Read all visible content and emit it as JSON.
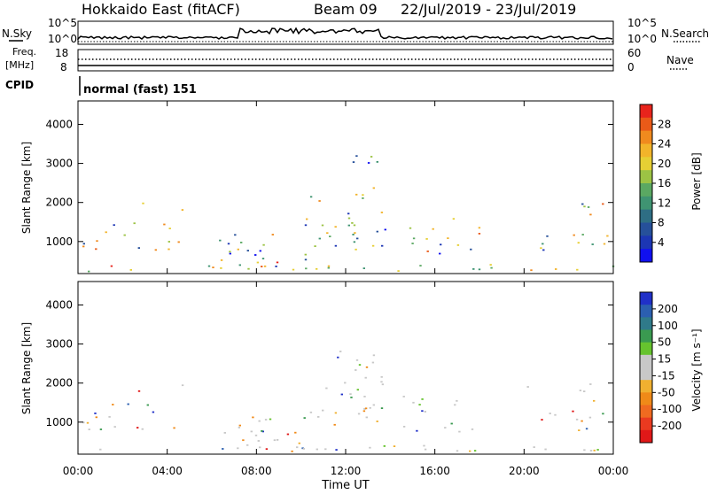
{
  "header": {
    "title": "Hokkaido East (fitACF)",
    "beam": "Beam 09",
    "dates": "22/Jul/2019 - 23/Jul/2019"
  },
  "noise_panel": {
    "left_label": "N.Sky",
    "right_label": "N.Search",
    "left_ticks": [
      "10^5",
      "10^0"
    ],
    "right_ticks": [
      "10^5",
      "10^0"
    ]
  },
  "freq_panel": {
    "left_label_line1": "Freq.",
    "left_label_line2": "[MHz]",
    "left_ticks": [
      "18",
      "8"
    ],
    "right_label": "Nave",
    "right_ticks": [
      "60",
      "0"
    ]
  },
  "cpid_panel": {
    "label": "CPID",
    "value": "normal (fast) 151"
  },
  "chart_data": [
    {
      "type": "heatmap",
      "panel": "power",
      "ylabel": "Slant Range [km]",
      "y_ticks": [
        1000,
        2000,
        3000,
        4000
      ],
      "ylim": [
        180,
        4600
      ],
      "colorbar": {
        "label": "Power [dB]",
        "ticks": [
          "28",
          "24",
          "20",
          "16",
          "12",
          "8",
          "4"
        ],
        "colors": [
          "#e8241c",
          "#ea5a18",
          "#f08a1e",
          "#f2b42a",
          "#e6cf34",
          "#9cc344",
          "#5aa862",
          "#3f9472",
          "#2e6e84",
          "#26509a",
          "#1c36b4",
          "#1010f0"
        ]
      }
    },
    {
      "type": "heatmap",
      "panel": "velocity",
      "ylabel": "Slant Range [km]",
      "y_ticks": [
        1000,
        2000,
        3000,
        4000
      ],
      "ylim": [
        180,
        4600
      ],
      "colorbar": {
        "label": "Velocity [m s⁻¹]",
        "ticks": [
          "200",
          "100",
          "50",
          "15",
          "-15",
          "-50",
          "-100",
          "-200"
        ],
        "colors": [
          "#2030c8",
          "#2b5fb0",
          "#2f7a8a",
          "#3a9a50",
          "#66c32e",
          "#c8c8c8",
          "#c8c8c8",
          "#f0b030",
          "#f08a18",
          "#f06a20",
          "#ea3a20",
          "#e01818"
        ]
      }
    }
  ],
  "time_axis": {
    "ticks": [
      "00:00",
      "04:00",
      "08:00",
      "12:00",
      "16:00",
      "20:00",
      "00:00"
    ],
    "label": "Time UT"
  }
}
